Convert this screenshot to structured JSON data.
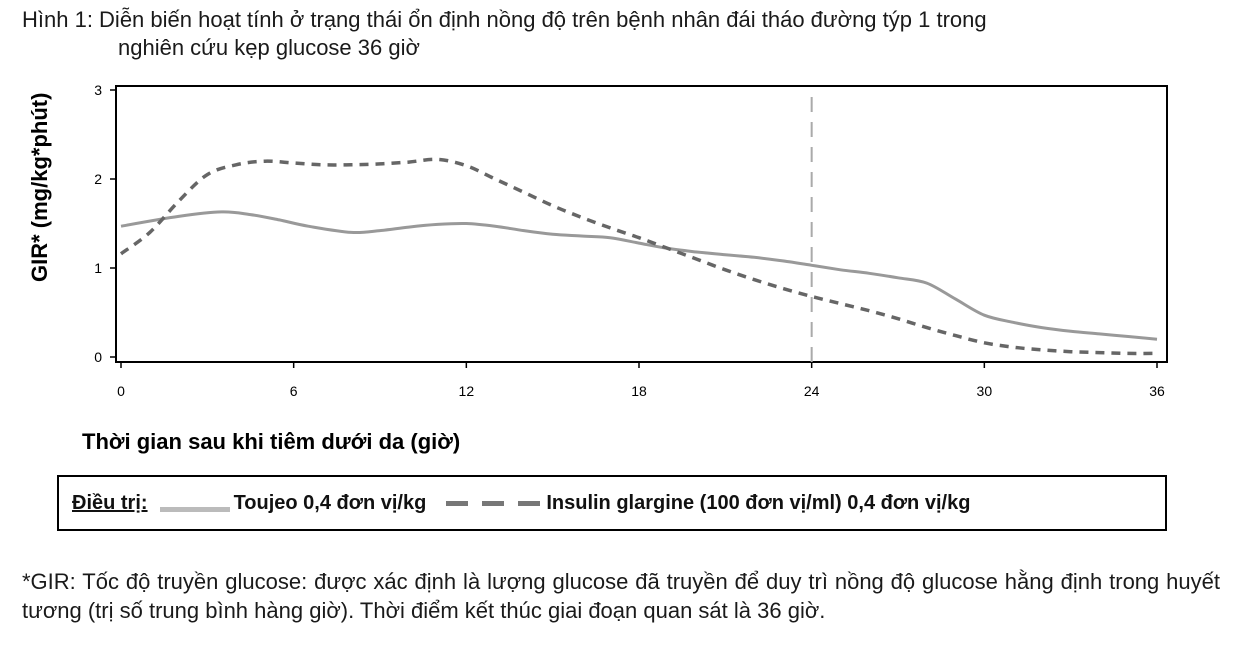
{
  "caption": {
    "line1": "Hình 1: Diễn biến hoạt tính ở trạng thái ổn định nồng độ trên bệnh nhân đái tháo đường týp 1 trong",
    "line2": "nghiên cứu kẹp glucose 36 giờ"
  },
  "legend": {
    "prefix": "Điều trị:",
    "series1": "Toujeo 0,4 đơn vị/kg",
    "series2": "Insulin glargine (100 đơn vị/ml) 0,4 đơn vị/kg"
  },
  "footnote": "*GIR: Tốc độ truyền glucose: được xác định là lượng glucose đã truyền để duy trì nồng độ glucose hằng định trong huyết tương (trị số trung bình hàng giờ). Thời điểm kết thúc giai đoạn quan sát là 36 giờ.",
  "chart_data": {
    "type": "line",
    "title": "",
    "xlabel": "Thời gian sau khi tiêm dưới da (giờ)",
    "ylabel": "GIR* (mg/kg*phút)",
    "xlim": [
      0,
      36
    ],
    "ylim": [
      0,
      3
    ],
    "xticks": [
      0,
      6,
      12,
      18,
      24,
      30,
      36
    ],
    "yticks": [
      0,
      1,
      2,
      3
    ],
    "vline_x": 24,
    "grid": false,
    "legend_position": "bottom",
    "series": [
      {
        "name": "Toujeo 0,4 đơn vị/kg",
        "style": "solid",
        "color": "#999999",
        "x": [
          0,
          2,
          3.5,
          4.5,
          5.5,
          6.5,
          8,
          9,
          10,
          11,
          12,
          13,
          14,
          15,
          16,
          17,
          18,
          19,
          20,
          21,
          22,
          23,
          24,
          25,
          26,
          27,
          28,
          29,
          30,
          31,
          32,
          33,
          34,
          35,
          36
        ],
        "y": [
          1.47,
          1.58,
          1.63,
          1.6,
          1.54,
          1.47,
          1.4,
          1.42,
          1.46,
          1.49,
          1.5,
          1.47,
          1.42,
          1.38,
          1.36,
          1.34,
          1.28,
          1.22,
          1.18,
          1.15,
          1.12,
          1.08,
          1.03,
          0.98,
          0.94,
          0.89,
          0.83,
          0.65,
          0.47,
          0.39,
          0.33,
          0.29,
          0.26,
          0.23,
          0.2
        ]
      },
      {
        "name": "Insulin glargine (100 đơn vị/ml) 0,4 đơn vị/kg",
        "style": "dashed",
        "color": "#666666",
        "x": [
          0,
          1,
          2,
          3,
          4,
          5,
          6,
          7,
          8,
          9,
          10,
          11,
          12,
          13,
          14,
          15,
          16,
          17,
          18,
          19,
          20,
          21,
          22,
          23,
          24,
          25,
          26,
          27,
          28,
          29,
          30,
          31,
          32,
          33,
          34,
          35,
          36
        ],
        "y": [
          1.16,
          1.4,
          1.75,
          2.05,
          2.16,
          2.2,
          2.18,
          2.16,
          2.16,
          2.17,
          2.19,
          2.22,
          2.15,
          2.0,
          1.85,
          1.7,
          1.57,
          1.45,
          1.34,
          1.22,
          1.1,
          0.98,
          0.87,
          0.77,
          0.68,
          0.6,
          0.52,
          0.43,
          0.33,
          0.24,
          0.16,
          0.11,
          0.08,
          0.06,
          0.05,
          0.04,
          0.04
        ]
      }
    ]
  }
}
